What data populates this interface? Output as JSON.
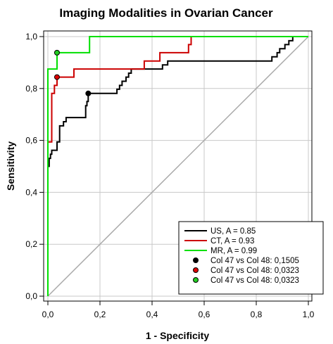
{
  "chart_data": {
    "type": "line",
    "title": "Imaging Modalities in Ovarian Cancer",
    "xlabel": "1 - Specificity",
    "ylabel": "Sensitivity",
    "xlim": [
      0,
      1
    ],
    "ylim": [
      0,
      1
    ],
    "x_ticks": [
      "0,0",
      "0,2",
      "0,4",
      "0,6",
      "0,8",
      "1,0"
    ],
    "y_ticks": [
      "0,0",
      "0,2",
      "0,4",
      "0,6",
      "0,8",
      "1,0"
    ],
    "grid": true,
    "legend_position": "bottom-right",
    "series": [
      {
        "name": "US, A = 0.85",
        "color": "#000000",
        "points": [
          [
            0.0,
            0.0
          ],
          [
            0.0,
            0.5
          ],
          [
            0.005,
            0.5
          ],
          [
            0.005,
            0.531
          ],
          [
            0.01,
            0.531
          ],
          [
            0.01,
            0.547
          ],
          [
            0.015,
            0.547
          ],
          [
            0.015,
            0.562
          ],
          [
            0.035,
            0.562
          ],
          [
            0.035,
            0.594
          ],
          [
            0.045,
            0.594
          ],
          [
            0.045,
            0.656
          ],
          [
            0.06,
            0.656
          ],
          [
            0.06,
            0.672
          ],
          [
            0.07,
            0.672
          ],
          [
            0.07,
            0.688
          ],
          [
            0.145,
            0.688
          ],
          [
            0.145,
            0.734
          ],
          [
            0.15,
            0.734
          ],
          [
            0.15,
            0.75
          ],
          [
            0.155,
            0.75
          ],
          [
            0.155,
            0.781
          ],
          [
            0.265,
            0.781
          ],
          [
            0.265,
            0.797
          ],
          [
            0.275,
            0.797
          ],
          [
            0.275,
            0.812
          ],
          [
            0.285,
            0.812
          ],
          [
            0.285,
            0.828
          ],
          [
            0.3,
            0.828
          ],
          [
            0.3,
            0.844
          ],
          [
            0.31,
            0.844
          ],
          [
            0.31,
            0.859
          ],
          [
            0.32,
            0.859
          ],
          [
            0.32,
            0.875
          ],
          [
            0.44,
            0.875
          ],
          [
            0.44,
            0.891
          ],
          [
            0.46,
            0.891
          ],
          [
            0.46,
            0.906
          ],
          [
            0.86,
            0.906
          ],
          [
            0.86,
            0.922
          ],
          [
            0.88,
            0.922
          ],
          [
            0.88,
            0.938
          ],
          [
            0.89,
            0.938
          ],
          [
            0.89,
            0.953
          ],
          [
            0.91,
            0.953
          ],
          [
            0.91,
            0.969
          ],
          [
            0.925,
            0.969
          ],
          [
            0.925,
            0.984
          ],
          [
            0.94,
            0.984
          ],
          [
            0.94,
            1.0
          ],
          [
            1.0,
            1.0
          ]
        ]
      },
      {
        "name": "CT, A = 0.93",
        "color": "#cc0000",
        "points": [
          [
            0.0,
            0.0
          ],
          [
            0.0,
            0.594
          ],
          [
            0.015,
            0.594
          ],
          [
            0.015,
            0.781
          ],
          [
            0.025,
            0.781
          ],
          [
            0.025,
            0.812
          ],
          [
            0.035,
            0.812
          ],
          [
            0.035,
            0.844
          ],
          [
            0.1,
            0.844
          ],
          [
            0.1,
            0.875
          ],
          [
            0.37,
            0.875
          ],
          [
            0.37,
            0.906
          ],
          [
            0.43,
            0.906
          ],
          [
            0.43,
            0.938
          ],
          [
            0.54,
            0.938
          ],
          [
            0.54,
            0.969
          ],
          [
            0.55,
            0.969
          ],
          [
            0.55,
            1.0
          ],
          [
            1.0,
            1.0
          ]
        ]
      },
      {
        "name": "MR, A = 0.99",
        "color": "#00e000",
        "points": [
          [
            0.0,
            0.0
          ],
          [
            0.0,
            0.875
          ],
          [
            0.035,
            0.875
          ],
          [
            0.035,
            0.938
          ],
          [
            0.16,
            0.938
          ],
          [
            0.16,
            1.0
          ],
          [
            1.0,
            1.0
          ]
        ]
      }
    ],
    "markers": [
      {
        "name": "Col 47 vs Col 48: 0,1505",
        "x": 0.155,
        "y": 0.781,
        "color": "#000000"
      },
      {
        "name": "Col 47 vs Col 48: 0,0323",
        "x": 0.035,
        "y": 0.844,
        "color": "#dd0000"
      },
      {
        "name": "Col 47 vs Col 48: 0,0323",
        "x": 0.035,
        "y": 0.938,
        "color": "#22cc22"
      }
    ],
    "reference_line": {
      "color": "#aaaaaa"
    }
  }
}
